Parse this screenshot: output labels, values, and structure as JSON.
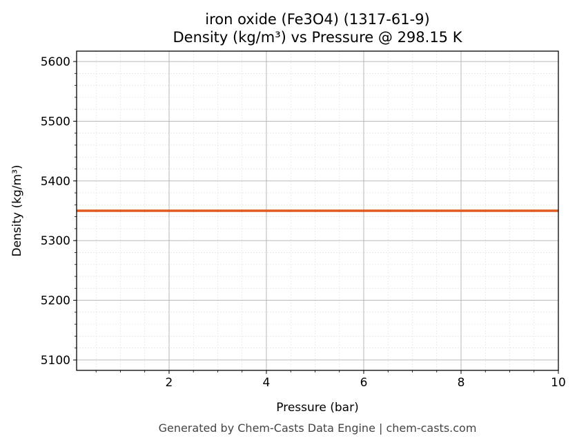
{
  "chart_data": {
    "type": "line",
    "title": "iron oxide (Fe3O4) (1317-61-9)",
    "subtitle": "Density (kg/m³) vs Pressure @ 298.15 K",
    "xlabel": "Pressure (bar)",
    "ylabel": "Density (kg/m³)",
    "xlim": [
      0.1,
      10
    ],
    "ylim": [
      5082.6,
      5617.4
    ],
    "xticks": [
      2,
      4,
      6,
      8,
      10
    ],
    "yticks": [
      5100,
      5200,
      5300,
      5400,
      5500,
      5600
    ],
    "grid": true,
    "series": [
      {
        "x": [
          0.1,
          10
        ],
        "y": [
          5350,
          5350
        ],
        "color": "#e05a20"
      }
    ]
  },
  "footer": "Generated by Chem-Casts Data Engine | chem-casts.com"
}
